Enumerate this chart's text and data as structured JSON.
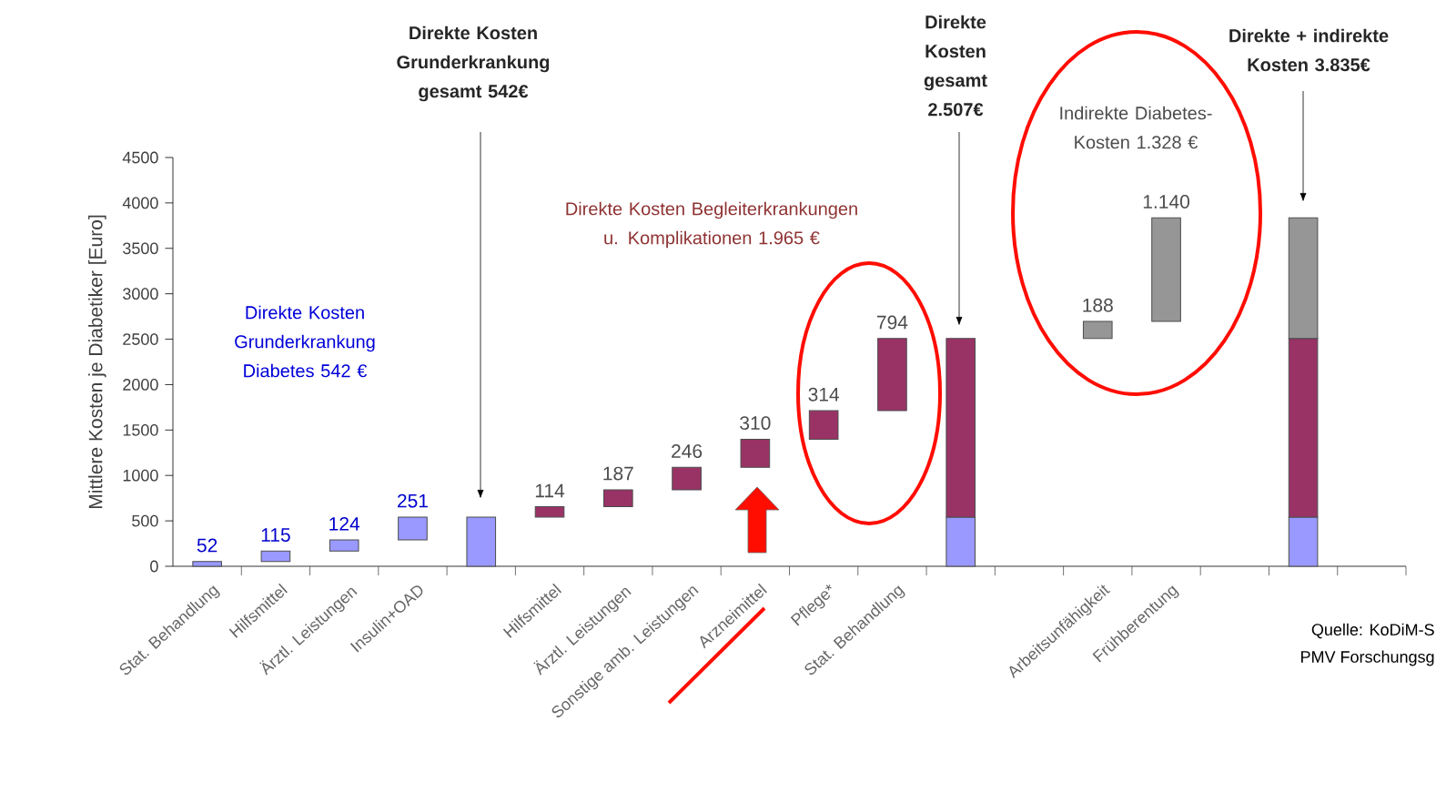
{
  "chart_data": {
    "type": "bar",
    "ylabel": "Mittlere Kosten je Diabetiker [Euro]",
    "categories": [
      "Stat. Behandlung",
      "Hilfsmittel",
      "Ärztl. Leistungen",
      "Insulin+OAD",
      null,
      "Hilfsmittel",
      "Ärztl. Leistungen",
      "Sonstige amb. Leistungen",
      "Arzneimittel",
      "Pflege*",
      "Stat. Behandlung",
      null,
      null,
      "Arbeitsunfähigkeit",
      "Frühberentung",
      null,
      null,
      null
    ],
    "series": [
      {
        "color": "#9999ff",
        "values": [
          52,
          115,
          124,
          251,
          542,
          null,
          null,
          null,
          null,
          null,
          null,
          542,
          null,
          null,
          null,
          null,
          542,
          null
        ],
        "base": [
          0,
          52,
          167,
          291,
          0,
          null,
          null,
          null,
          null,
          null,
          null,
          0,
          null,
          null,
          null,
          null,
          0,
          null
        ],
        "value_labels": [
          "52",
          "115",
          "124",
          "251",
          null,
          null,
          null,
          null,
          null,
          null,
          null,
          null,
          null,
          null,
          null,
          null,
          null,
          null
        ]
      },
      {
        "color": "#993366",
        "values": [
          null,
          null,
          null,
          null,
          null,
          114,
          187,
          246,
          310,
          314,
          794,
          1965,
          null,
          null,
          null,
          null,
          1965,
          null
        ],
        "base": [
          null,
          null,
          null,
          null,
          null,
          542,
          656,
          843,
          1089,
          1399,
          1713,
          542,
          null,
          null,
          null,
          null,
          542,
          null
        ],
        "value_labels": [
          null,
          null,
          null,
          null,
          null,
          "114",
          "187",
          "246",
          "310",
          "314",
          "794",
          null,
          null,
          null,
          null,
          null,
          null,
          null
        ]
      },
      {
        "color": "#969696",
        "values": [
          null,
          null,
          null,
          null,
          null,
          null,
          null,
          null,
          null,
          null,
          null,
          null,
          null,
          188,
          1140,
          null,
          1328,
          null
        ],
        "base": [
          null,
          null,
          null,
          null,
          null,
          null,
          null,
          null,
          null,
          null,
          null,
          null,
          null,
          2507,
          2695,
          null,
          2507,
          null
        ],
        "value_labels": [
          null,
          null,
          null,
          null,
          null,
          null,
          null,
          null,
          null,
          null,
          null,
          null,
          null,
          "188",
          "1.140",
          null,
          null,
          null
        ]
      }
    ],
    "ylim": [
      0,
      4500
    ],
    "yticks": [
      0,
      500,
      1000,
      1500,
      2000,
      2500,
      3000,
      3500,
      4000,
      4500
    ],
    "annotations": [
      "Direkte Kosten Grunderkrankung gesamt 542€",
      "Direkte Kosten Grunderkrankung Diabetes 542 €",
      "Direkte Kosten Begleiterkrankungen u. Komplikationen 1.965 €",
      "Direkte Kosten gesamt 2.507€",
      "Indirekte Diabetes-Kosten 1.328 €",
      "Direkte + indirekte Kosten 3.835€",
      "Quelle: KoDiM-S",
      "PMV Forschungsg"
    ]
  }
}
